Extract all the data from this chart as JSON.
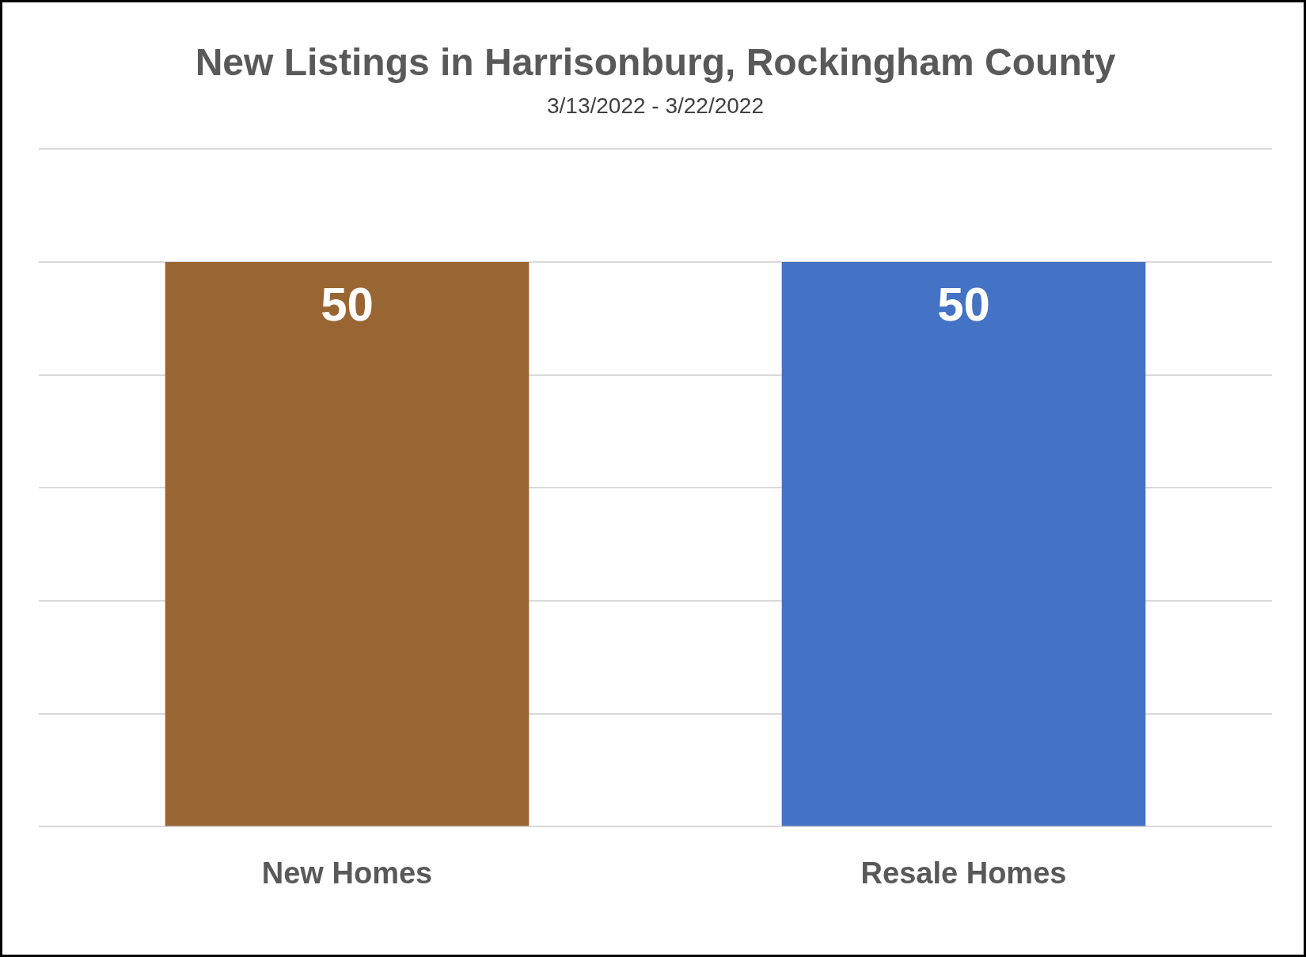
{
  "chart_data": {
    "type": "bar",
    "title": "New Listings in Harrisonburg, Rockingham County",
    "subtitle": "3/13/2022 - 3/22/2022",
    "categories": [
      "New Homes",
      "Resale Homes"
    ],
    "values": [
      50,
      50
    ],
    "colors": [
      "#996633",
      "#4472c4"
    ],
    "ylim": [
      0,
      60
    ],
    "yticks": [
      {
        "value": 0,
        "label": null
      },
      {
        "value": 10,
        "label": null
      },
      {
        "value": 20,
        "label": null
      },
      {
        "value": 30,
        "label": null
      },
      {
        "value": 40,
        "label": null
      },
      {
        "value": 50,
        "label": null
      },
      {
        "value": 60,
        "label": null
      }
    ],
    "grid": "y",
    "tick_labels": "x",
    "data_labels": true
  }
}
